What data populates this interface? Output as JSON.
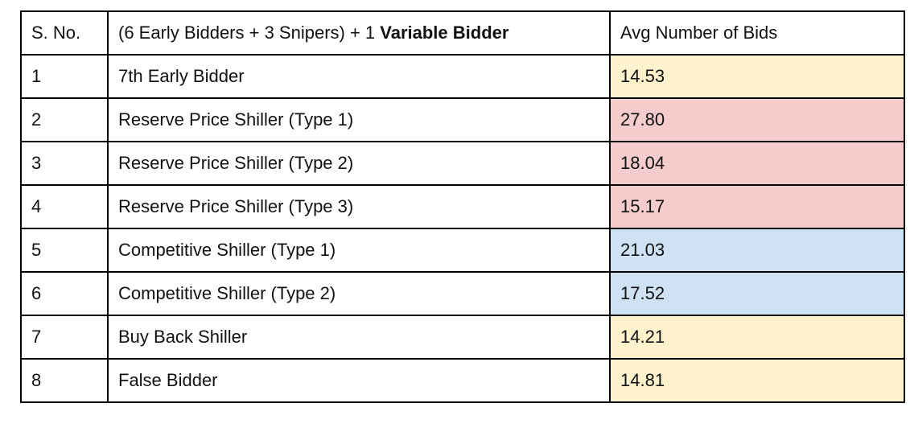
{
  "table": {
    "headers": {
      "sno": "S. No.",
      "config_prefix": "(6 Early Bidders + 3 Snipers) + 1 ",
      "config_bold": "Variable Bidder",
      "avg": "Avg Number of Bids"
    },
    "colors": {
      "yellow": "#fff2cc",
      "red": "#f4cccc",
      "blue": "#cfe2f3"
    },
    "rows": [
      {
        "sno": "1",
        "bidder": "7th Early Bidder",
        "avg": "14.53",
        "color": "yellow"
      },
      {
        "sno": "2",
        "bidder": "Reserve Price Shiller (Type 1)",
        "avg": "27.80",
        "color": "red"
      },
      {
        "sno": "3",
        "bidder": "Reserve Price Shiller (Type 2)",
        "avg": "18.04",
        "color": "red"
      },
      {
        "sno": "4",
        "bidder": "Reserve Price Shiller (Type 3)",
        "avg": "15.17",
        "color": "red"
      },
      {
        "sno": "5",
        "bidder": "Competitive Shiller (Type 1)",
        "avg": "21.03",
        "color": "blue"
      },
      {
        "sno": "6",
        "bidder": "Competitive Shiller (Type 2)",
        "avg": "17.52",
        "color": "blue"
      },
      {
        "sno": "7",
        "bidder": "Buy Back Shiller",
        "avg": "14.21",
        "color": "yellow"
      },
      {
        "sno": "8",
        "bidder": "False Bidder",
        "avg": "14.81",
        "color": "yellow"
      }
    ]
  }
}
